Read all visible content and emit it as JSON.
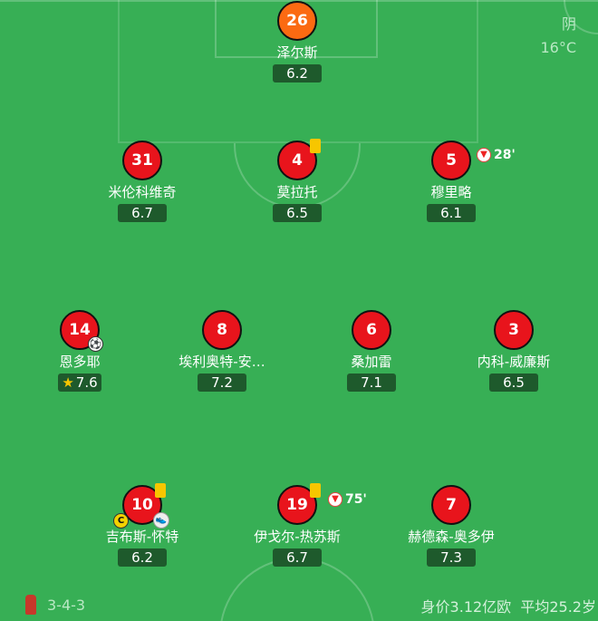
{
  "weather": {
    "condition": "阴",
    "temperature": "16°C"
  },
  "team": {
    "formation": "3-4-3",
    "market_value": "身价3.12亿欧",
    "average_age": "平均25.2岁",
    "logo_icon": "club-crest-icon"
  },
  "colors": {
    "pitch": "#37af55",
    "player": "#e8141c",
    "goalkeeper": "#fb6a12",
    "rating_bg": "#1e5a2c",
    "yellow_card": "#f7c600"
  },
  "players": [
    {
      "number": "26",
      "name": "泽尔斯",
      "rating": "6.2"
    },
    {
      "number": "31",
      "name": "米伦科维奇",
      "rating": "6.7"
    },
    {
      "number": "4",
      "name": "莫拉托",
      "rating": "6.5",
      "yellow_card": true
    },
    {
      "number": "5",
      "name": "穆里略",
      "rating": "6.1",
      "sub_off": "28'"
    },
    {
      "number": "14",
      "name": "恩多耶",
      "rating": "7.6",
      "goal": true,
      "best_player": true
    },
    {
      "number": "8",
      "name": "埃利奥特-安…",
      "rating": "7.2"
    },
    {
      "number": "6",
      "name": "桑加雷",
      "rating": "7.1"
    },
    {
      "number": "3",
      "name": "内科-威廉斯",
      "rating": "6.5"
    },
    {
      "number": "10",
      "name": "吉布斯-怀特",
      "rating": "6.2",
      "yellow_card": true,
      "captain": "C",
      "assist": true
    },
    {
      "number": "19",
      "name": "伊戈尔-热苏斯",
      "rating": "6.7",
      "yellow_card": true,
      "sub_off": "75'"
    },
    {
      "number": "7",
      "name": "赫德森-奥多伊",
      "rating": "7.3"
    }
  ]
}
